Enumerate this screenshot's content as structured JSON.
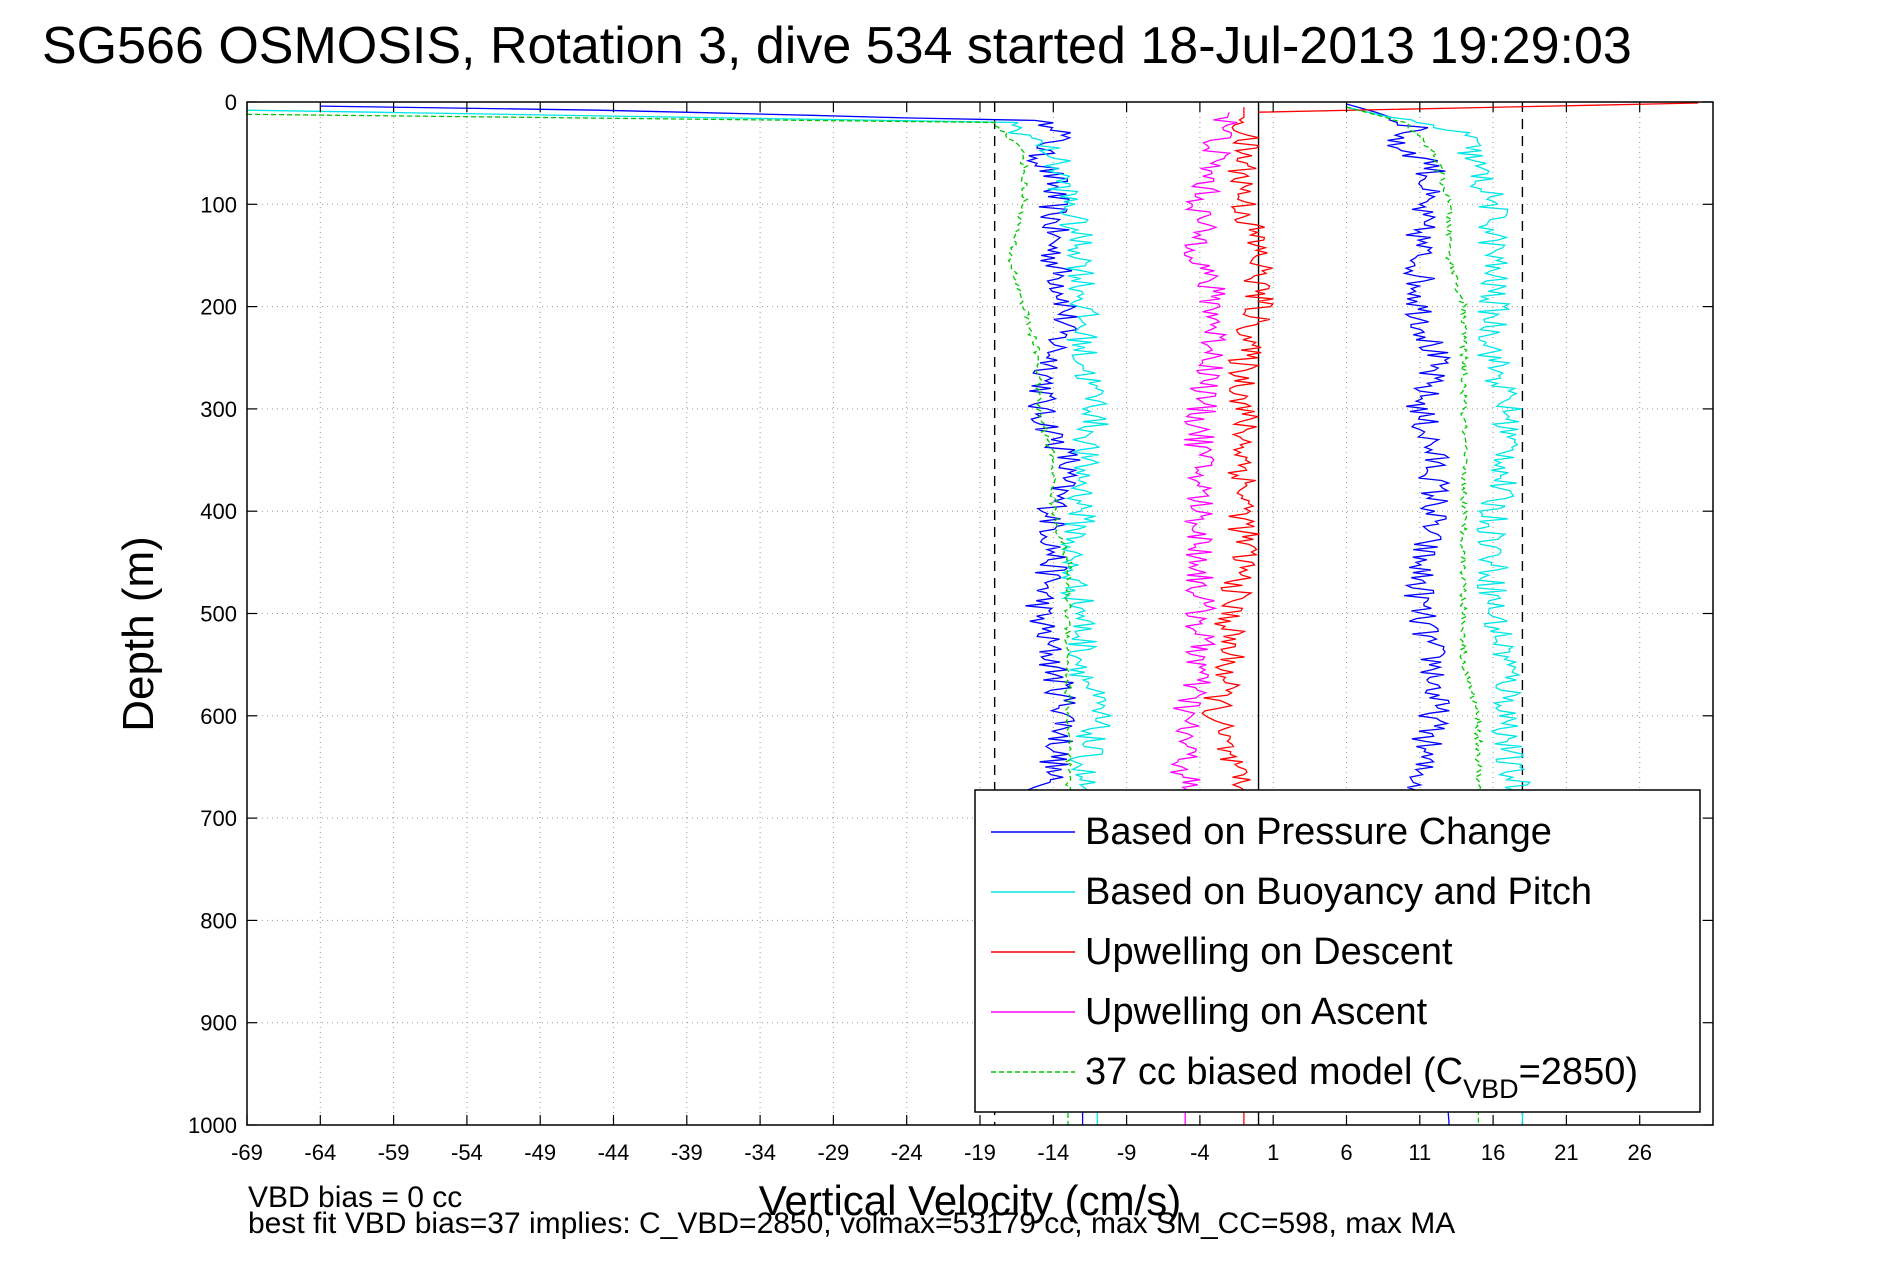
{
  "chart_data": {
    "type": "line",
    "title": "SG566 OSMOSIS, Rotation 3, dive 534 started 18-Jul-2013 19:29:03",
    "xlabel": "Vertical Velocity (cm/s)",
    "ylabel": "Depth (m)",
    "xlim": [
      -69,
      31
    ],
    "ylim": [
      0,
      1000
    ],
    "y_reversed": true,
    "grid": true,
    "legend_position": "bottom-right",
    "x_ticks": [
      -69,
      -64,
      -59,
      -54,
      -49,
      -44,
      -39,
      -34,
      -29,
      -24,
      -19,
      -14,
      -9,
      -4,
      1,
      6,
      11,
      16,
      21,
      26
    ],
    "y_ticks": [
      0,
      100,
      200,
      300,
      400,
      500,
      600,
      700,
      800,
      900,
      1000
    ],
    "reference_lines": [
      {
        "x": -18,
        "style": "dashed",
        "color": "#000000"
      },
      {
        "x": 0,
        "style": "solid",
        "color": "#000000"
      },
      {
        "x": 18,
        "style": "dashed",
        "color": "#000000"
      }
    ],
    "series": [
      {
        "name": "Based on Pressure Change",
        "color": "#0000ff",
        "style": "solid",
        "x": [
          -64,
          -45,
          -16,
          -13,
          -15,
          -14,
          -14,
          -14,
          -13,
          -14,
          -15,
          -13,
          -14,
          -14,
          -15,
          -14,
          -13,
          -14,
          -15,
          -13,
          -13,
          -12,
          -12
        ],
        "y": [
          4,
          8,
          18,
          25,
          50,
          75,
          100,
          150,
          200,
          250,
          300,
          350,
          400,
          450,
          500,
          550,
          600,
          650,
          680,
          700,
          800,
          900,
          1000
        ]
      },
      {
        "name": "Based on Pressure Change",
        "color": "#0000ff",
        "style": "solid",
        "x": [
          6,
          8,
          11,
          9,
          12,
          11,
          11,
          11,
          12,
          11,
          12,
          12,
          11,
          11,
          12,
          12,
          11,
          11,
          12,
          12,
          13
        ],
        "y": [
          2,
          10,
          25,
          40,
          60,
          100,
          150,
          200,
          250,
          300,
          350,
          400,
          450,
          500,
          550,
          600,
          650,
          680,
          700,
          800,
          1000
        ]
      },
      {
        "name": "Based on Buoyancy and Pitch",
        "color": "#00e6e6",
        "style": "solid",
        "x": [
          -69,
          -17,
          -14,
          -13,
          -12,
          -12,
          -12,
          -11,
          -12,
          -12,
          -13,
          -12,
          -12,
          -11,
          -12,
          -12,
          -11,
          -11,
          -11,
          -11
        ],
        "y": [
          8,
          20,
          50,
          100,
          150,
          200,
          250,
          300,
          350,
          400,
          450,
          500,
          550,
          600,
          650,
          680,
          700,
          800,
          900,
          1000
        ]
      },
      {
        "name": "Based on Buoyancy and Pitch",
        "color": "#00e6e6",
        "style": "solid",
        "x": [
          6,
          9,
          14,
          15,
          16,
          16,
          16,
          16,
          17,
          17,
          16,
          16,
          16,
          17,
          17,
          17,
          18,
          18
        ],
        "y": [
          5,
          15,
          30,
          70,
          100,
          150,
          200,
          250,
          300,
          350,
          400,
          450,
          500,
          550,
          600,
          650,
          680,
          1000
        ]
      },
      {
        "name": "Upwelling on Descent",
        "color": "#ff0000",
        "style": "solid",
        "x": [
          -1,
          -1,
          -1,
          0,
          0,
          -1,
          -1,
          -1,
          -1,
          -1,
          -2,
          -2,
          -3,
          -2,
          -1,
          -1,
          -1,
          -1,
          -1
        ],
        "y": [
          5,
          50,
          100,
          150,
          200,
          250,
          300,
          350,
          400,
          450,
          500,
          550,
          600,
          650,
          680,
          700,
          800,
          900,
          1000
        ]
      },
      {
        "name": "Upwelling on Descent",
        "color": "#ff0000",
        "style": "solid",
        "x": [
          30,
          0
        ],
        "y": [
          1,
          10
        ]
      },
      {
        "name": "Upwelling on Ascent",
        "color": "#ff00ff",
        "style": "solid",
        "x": [
          -2,
          -3,
          -4,
          -4,
          -3,
          -3,
          -4,
          -4,
          -4,
          -4,
          -4,
          -4,
          -5,
          -5,
          -5,
          -5
        ],
        "y": [
          10,
          50,
          100,
          150,
          200,
          250,
          300,
          350,
          400,
          450,
          500,
          550,
          600,
          650,
          680,
          1000
        ]
      },
      {
        "name": "37 cc biased model (C_VBD=2850)",
        "color": "#00c800",
        "style": "dashed",
        "x": [
          -69,
          -18,
          -16,
          -16,
          -17,
          -16,
          -15,
          -15,
          -14,
          -14,
          -13,
          -13,
          -13,
          -13,
          -13,
          -13,
          -13
        ],
        "y": [
          12,
          20,
          50,
          100,
          150,
          200,
          250,
          300,
          350,
          400,
          450,
          500,
          550,
          600,
          650,
          680,
          1000
        ]
      },
      {
        "name": "37 cc biased model (C_VBD=2850)",
        "color": "#00c800",
        "style": "dashed",
        "x": [
          6,
          10,
          12,
          13,
          13,
          14,
          14,
          14,
          14,
          14,
          14,
          14,
          14,
          15,
          15,
          15,
          15,
          15
        ],
        "y": [
          5,
          20,
          50,
          100,
          150,
          200,
          250,
          300,
          350,
          400,
          450,
          500,
          550,
          600,
          650,
          680,
          700,
          1000
        ]
      }
    ],
    "legend": [
      {
        "label": "Based on Pressure Change",
        "color": "#0000ff",
        "style": "solid"
      },
      {
        "label": "Based on Buoyancy and Pitch",
        "color": "#00e6e6",
        "style": "solid"
      },
      {
        "label": "Upwelling on Descent",
        "color": "#ff0000",
        "style": "solid"
      },
      {
        "label": "Upwelling on Ascent",
        "color": "#ff00ff",
        "style": "solid"
      },
      {
        "label": "37 cc biased model (C",
        "label_sub": "VBD",
        "label_tail": "=2850)",
        "color": "#00c800",
        "style": "dashed"
      }
    ]
  },
  "footer": {
    "line1": "VBD bias = 0 cc",
    "line2": "best fit VBD bias=37 implies: C_VBD=2850, volmax=53179 cc, max SM_CC=598, max MA"
  }
}
